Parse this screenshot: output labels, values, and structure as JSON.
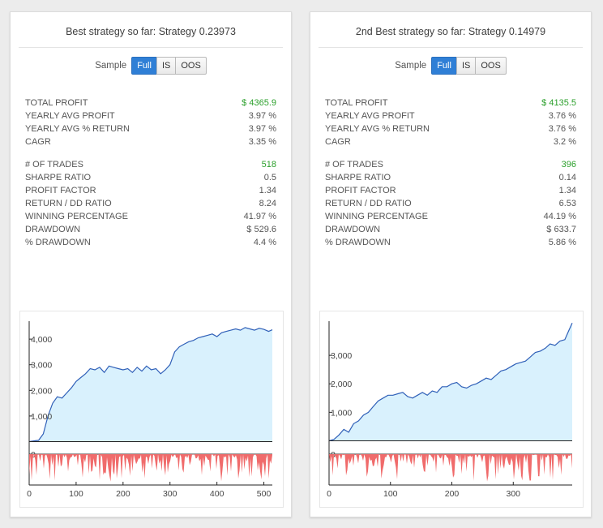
{
  "panels": [
    {
      "title": "Best strategy so far: Strategy 0.23973",
      "sample_label": "Sample",
      "buttons": [
        "Full",
        "IS",
        "OOS"
      ],
      "active_button": "Full",
      "stats_group1": [
        {
          "label": "TOTAL PROFIT",
          "value": "$ 4365.9",
          "highlight": true
        },
        {
          "label": "YEARLY AVG PROFIT",
          "value": "3.97 %"
        },
        {
          "label": "YEARLY AVG % RETURN",
          "value": "3.97 %"
        },
        {
          "label": "CAGR",
          "value": "3.35 %"
        }
      ],
      "stats_group2": [
        {
          "label": "# OF TRADES",
          "value": "518",
          "highlight": true
        },
        {
          "label": "SHARPE RATIO",
          "value": "0.5"
        },
        {
          "label": "PROFIT FACTOR",
          "value": "1.34"
        },
        {
          "label": "RETURN / DD RATIO",
          "value": "8.24"
        },
        {
          "label": "WINNING PERCENTAGE",
          "value": "41.97 %"
        },
        {
          "label": "DRAWDOWN",
          "value": "$ 529.6"
        },
        {
          "label": "% DRAWDOWN",
          "value": "4.4 %"
        }
      ],
      "chart_data": {
        "type": "area",
        "series": [
          {
            "x": [
              0,
              10,
              20,
              30,
              40,
              50,
              60,
              70,
              80,
              90,
              100,
              110,
              120,
              130,
              140,
              150,
              160,
              170,
              180,
              190,
              200,
              210,
              220,
              230,
              240,
              250,
              260,
              270,
              280,
              290,
              300,
              310,
              320,
              330,
              340,
              350,
              360,
              370,
              380,
              390,
              400,
              410,
              420,
              430,
              440,
              450,
              460,
              470,
              480,
              490,
              500,
              510,
              518
            ],
            "values": [
              0,
              30,
              50,
              300,
              1000,
              1500,
              1750,
              1700,
              1900,
              2100,
              2350,
              2500,
              2650,
              2850,
              2800,
              2900,
              2700,
              2950,
              2900,
              2850,
              2800,
              2850,
              2700,
              2900,
              2750,
              2950,
              2800,
              2850,
              2650,
              2800,
              3000,
              3500,
              3700,
              3800,
              3900,
              3950,
              4050,
              4100,
              4150,
              4200,
              4100,
              4250,
              4300,
              4350,
              4400,
              4350,
              4450,
              4400,
              4350,
              4420,
              4380,
              4300,
              4366
            ]
          }
        ],
        "yticks": [
          {
            "value": 1000,
            "label": "1,000"
          },
          {
            "value": 2000,
            "label": "2,000"
          },
          {
            "value": 3000,
            "label": "3,000"
          },
          {
            "value": 4000,
            "label": "4,000"
          }
        ],
        "xticks": [
          0,
          100,
          200,
          300,
          400,
          500
        ],
        "ylim": [
          -300,
          4700
        ],
        "xlim": [
          0,
          518
        ],
        "drawdown_max": 530,
        "drawdown_tick": "0",
        "fill_color": "#d9f1fd",
        "line_color": "#3060b8",
        "drawdown_color": "#f06b6b"
      }
    },
    {
      "title": "2nd Best strategy so far: Strategy 0.14979",
      "sample_label": "Sample",
      "buttons": [
        "Full",
        "IS",
        "OOS"
      ],
      "active_button": "Full",
      "stats_group1": [
        {
          "label": "TOTAL PROFIT",
          "value": "$ 4135.5",
          "highlight": true
        },
        {
          "label": "YEARLY AVG PROFIT",
          "value": "3.76 %"
        },
        {
          "label": "YEARLY AVG % RETURN",
          "value": "3.76 %"
        },
        {
          "label": "CAGR",
          "value": "3.2 %"
        }
      ],
      "stats_group2": [
        {
          "label": "# OF TRADES",
          "value": "396",
          "highlight": true
        },
        {
          "label": "SHARPE RATIO",
          "value": "0.14"
        },
        {
          "label": "PROFIT FACTOR",
          "value": "1.34"
        },
        {
          "label": "RETURN / DD RATIO",
          "value": "6.53"
        },
        {
          "label": "WINNING PERCENTAGE",
          "value": "44.19 %"
        },
        {
          "label": "DRAWDOWN",
          "value": "$ 633.7"
        },
        {
          "label": "% DRAWDOWN",
          "value": "5.86 %"
        }
      ],
      "chart_data": {
        "type": "area",
        "series": [
          {
            "x": [
              0,
              8,
              16,
              24,
              32,
              40,
              48,
              56,
              64,
              72,
              80,
              88,
              96,
              104,
              112,
              120,
              128,
              136,
              144,
              152,
              160,
              168,
              176,
              184,
              192,
              200,
              208,
              216,
              224,
              232,
              240,
              248,
              256,
              264,
              272,
              280,
              288,
              296,
              304,
              312,
              320,
              328,
              336,
              344,
              352,
              360,
              368,
              376,
              384,
              390,
              396
            ],
            "values": [
              0,
              50,
              200,
              400,
              300,
              600,
              700,
              900,
              1000,
              1200,
              1400,
              1500,
              1600,
              1600,
              1650,
              1700,
              1550,
              1500,
              1600,
              1700,
              1600,
              1750,
              1700,
              1900,
              1900,
              2000,
              2050,
              1900,
              1850,
              1950,
              2000,
              2100,
              2200,
              2150,
              2300,
              2450,
              2500,
              2600,
              2700,
              2750,
              2800,
              2950,
              3100,
              3150,
              3250,
              3400,
              3350,
              3500,
              3550,
              3850,
              4135
            ]
          }
        ],
        "yticks": [
          {
            "value": 1000,
            "label": "1,000"
          },
          {
            "value": 2000,
            "label": "2,000"
          },
          {
            "value": 3000,
            "label": "3,000"
          }
        ],
        "xticks": [
          0,
          100,
          200,
          300
        ],
        "ylim": [
          -300,
          4200
        ],
        "xlim": [
          0,
          396
        ],
        "drawdown_max": 634,
        "drawdown_tick": "0",
        "fill_color": "#d9f1fd",
        "line_color": "#3060b8",
        "drawdown_color": "#f06b6b"
      }
    }
  ]
}
